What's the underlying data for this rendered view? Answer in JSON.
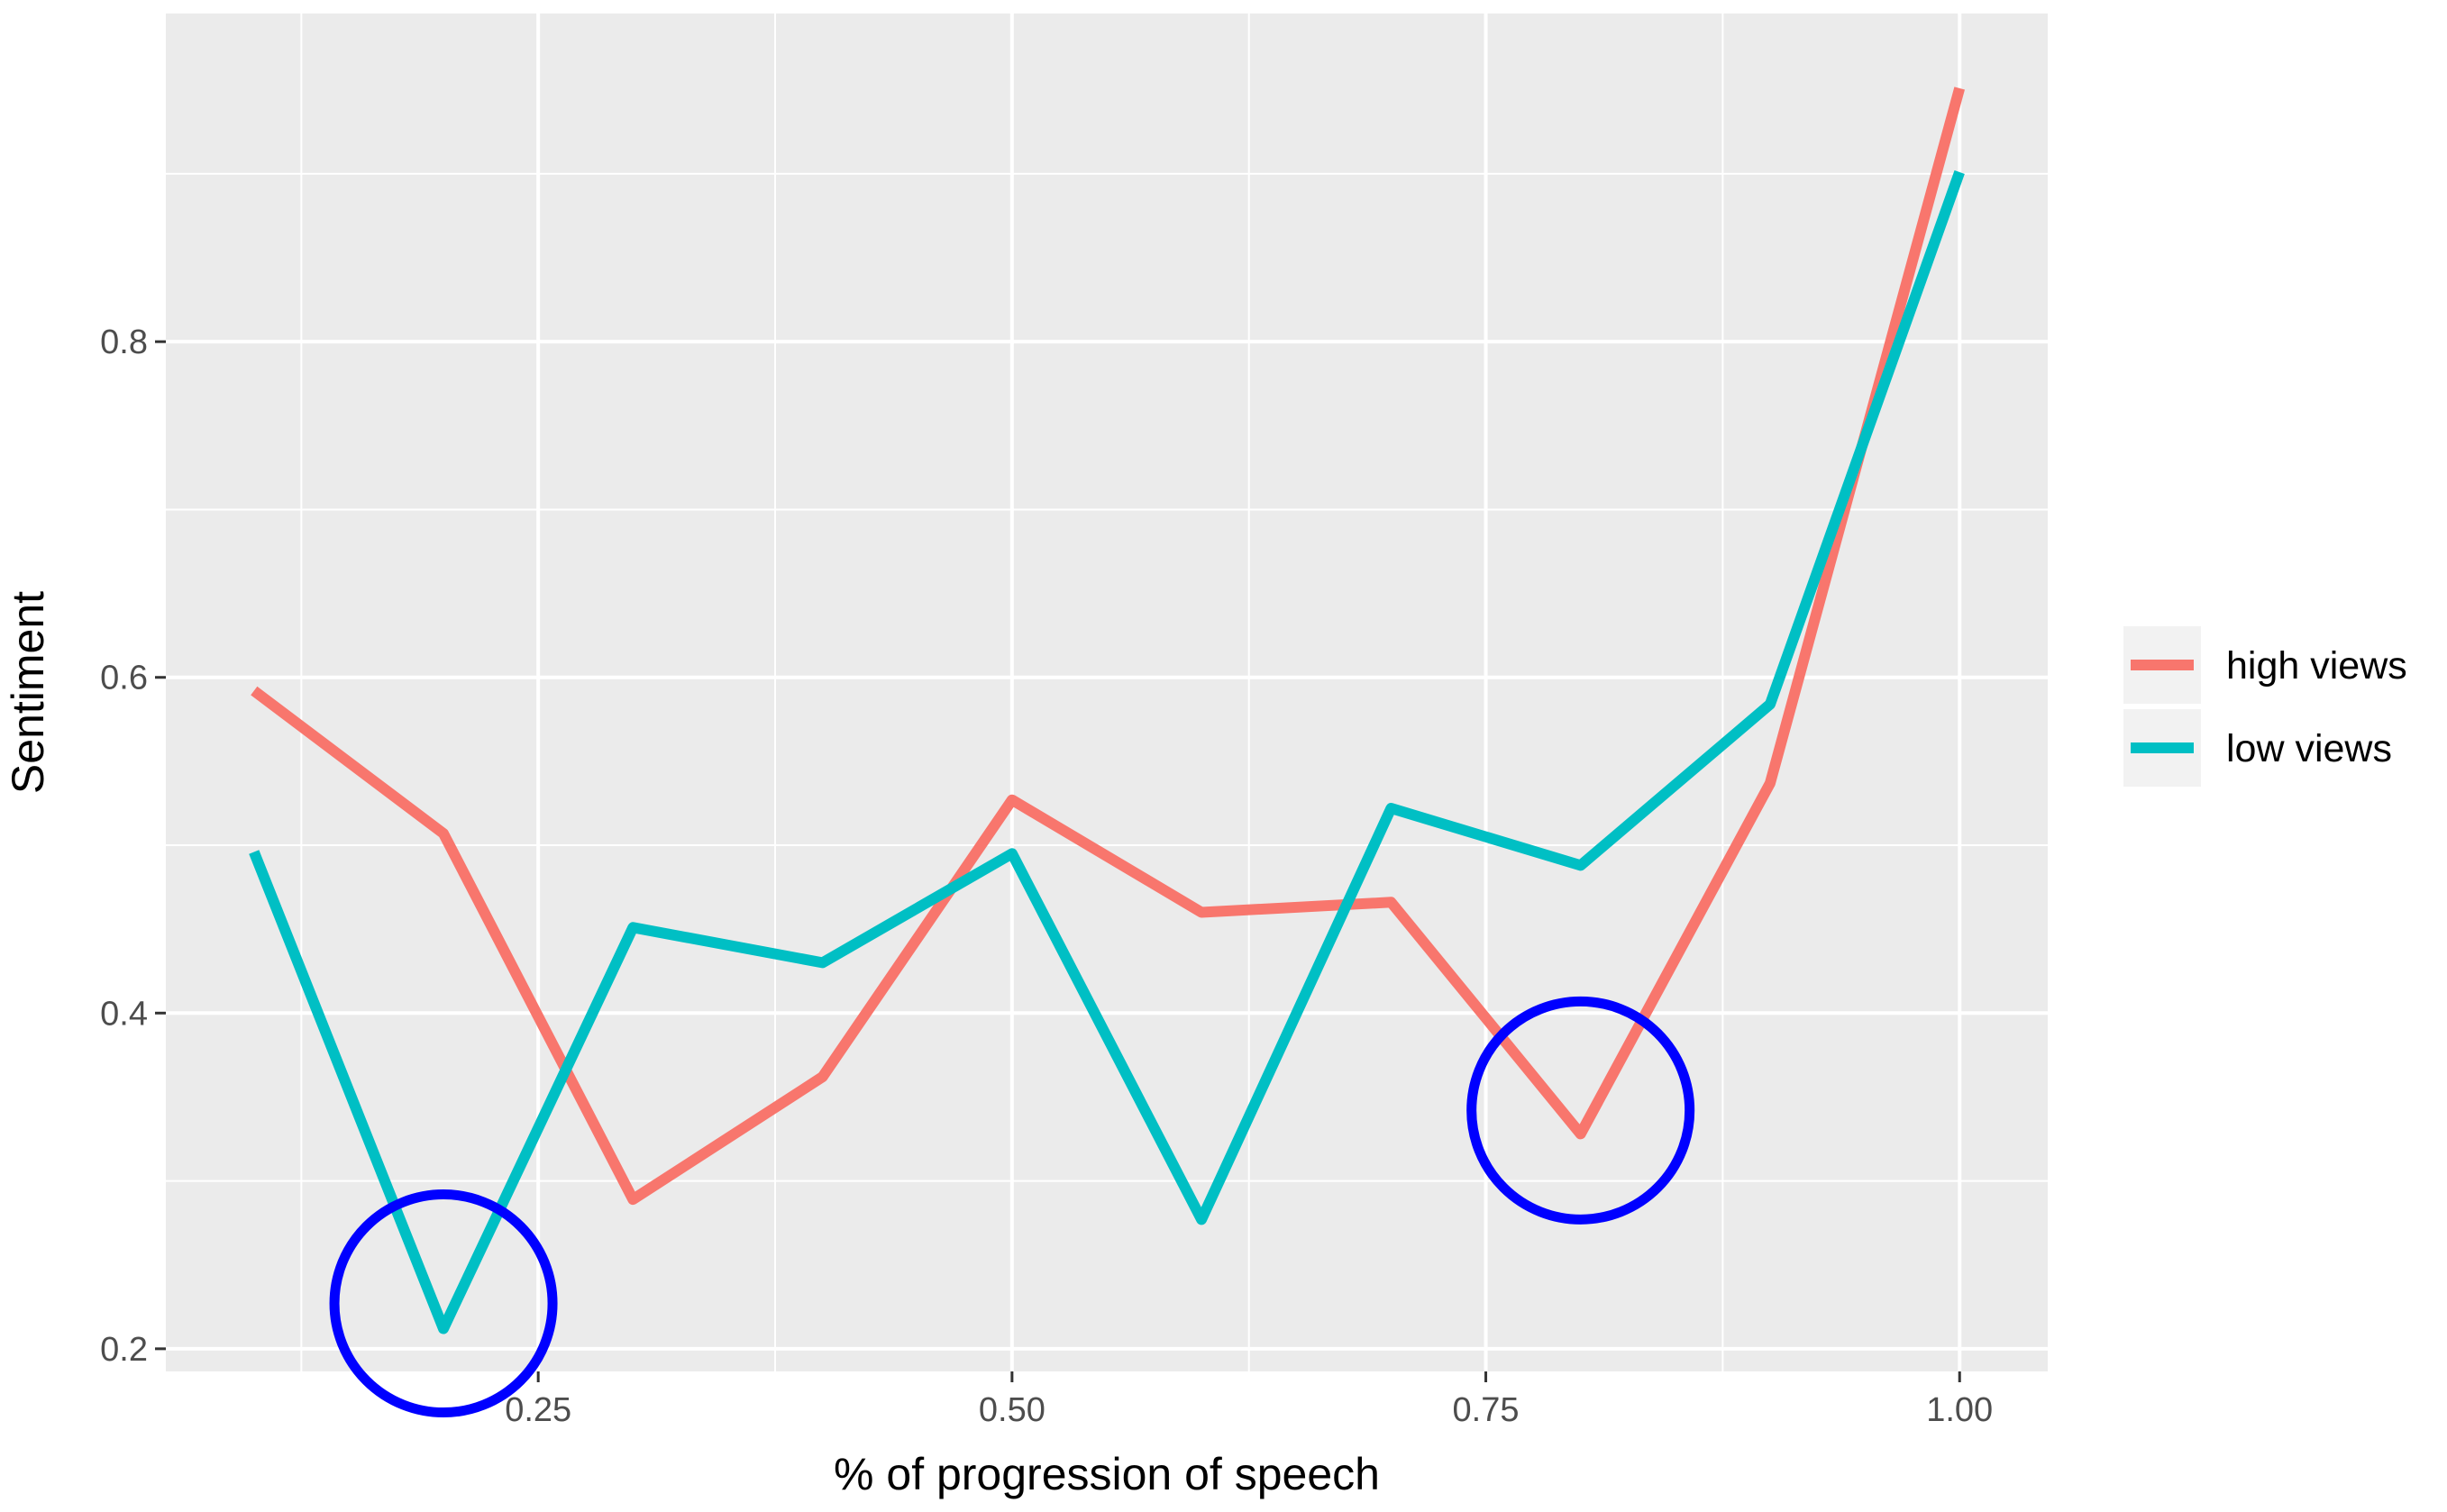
{
  "chart_data": {
    "type": "line",
    "xlabel": "% of progression of speech",
    "ylabel": "Sentiment",
    "xlim": [
      0.0535,
      1.0465
    ],
    "ylim": [
      0.1865,
      0.9955
    ],
    "x_ticks": [
      0.25,
      0.5,
      0.75,
      1.0
    ],
    "x_tick_labels": [
      "0.25",
      "0.50",
      "0.75",
      "1.00"
    ],
    "y_ticks": [
      0.2,
      0.4,
      0.6,
      0.8
    ],
    "y_tick_labels": [
      "0.2",
      "0.4",
      "0.6",
      "0.8"
    ],
    "x": [
      0.1,
      0.2,
      0.3,
      0.4,
      0.5,
      0.6,
      0.7,
      0.8,
      0.9,
      1.0
    ],
    "series": [
      {
        "name": "high views",
        "color": "#F8766D",
        "values": [
          0.592,
          0.507,
          0.289,
          0.362,
          0.527,
          0.46,
          0.466,
          0.328,
          0.537,
          0.951
        ]
      },
      {
        "name": "low views",
        "color": "#00BFC4",
        "values": [
          0.496,
          0.212,
          0.451,
          0.43,
          0.495,
          0.277,
          0.522,
          0.488,
          0.584,
          0.901
        ]
      }
    ],
    "annotations": [
      {
        "type": "circle",
        "color": "#0000FF",
        "x": 0.2,
        "y": 0.227,
        "note": "low views minimum"
      },
      {
        "type": "circle",
        "color": "#0000FF",
        "x": 0.8,
        "y": 0.342,
        "note": "high views dip"
      }
    ],
    "grid": true,
    "legend_position": "right",
    "panel_background": "#EBEBEB",
    "gridline_color": "#FFFFFF"
  }
}
